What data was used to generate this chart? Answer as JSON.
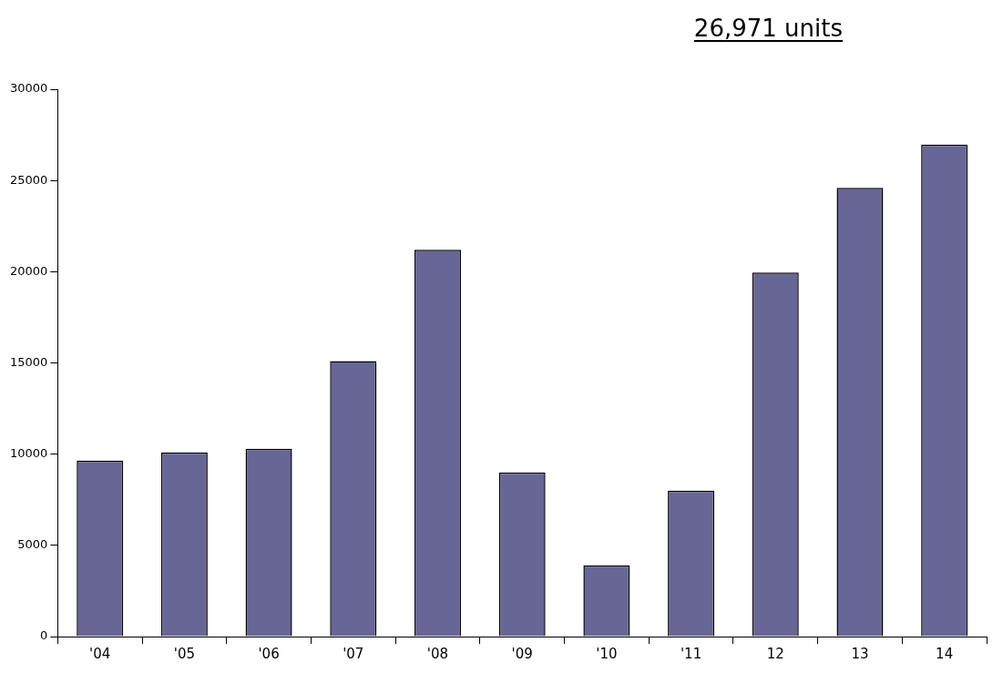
{
  "chart_data": {
    "type": "bar",
    "categories": [
      "'04",
      "'05",
      "'06",
      "'07",
      "'08",
      "'09",
      "'10",
      "'11",
      "12",
      "13",
      "14"
    ],
    "values": [
      9650,
      10100,
      10300,
      15100,
      21200,
      9000,
      3900,
      8000,
      19950,
      24600,
      26971
    ],
    "color": "#676696",
    "ylim": [
      0,
      30000
    ],
    "yticks": [
      0,
      5000,
      10000,
      15000,
      20000,
      25000,
      30000
    ],
    "annotations": [
      "26,971 units"
    ]
  }
}
